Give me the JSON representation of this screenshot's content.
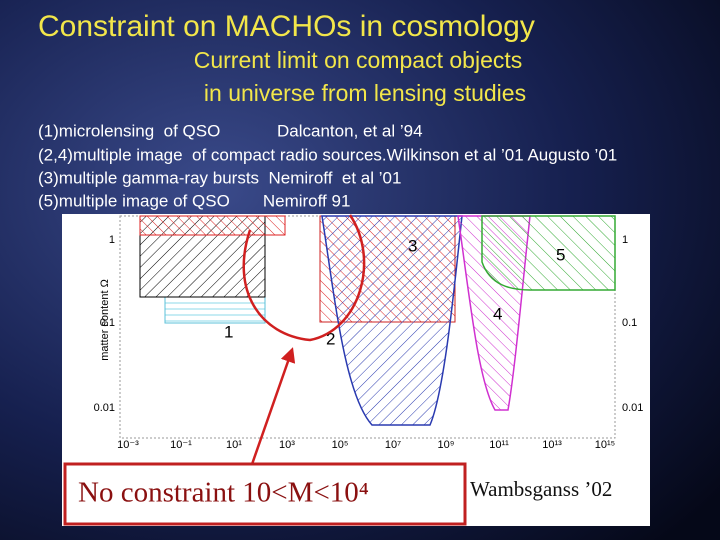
{
  "slide": {
    "title": "Constraint on MACHOs in cosmology",
    "subtitle": [
      "Current limit on compact objects",
      "in universe  from lensing studies"
    ],
    "references": [
      "(1)microlensing  of QSO            Dalcanton, et al ’94",
      "(2,4)multiple image  of compact radio sources.Wilkinson et al ’01 Augusto ’01",
      "(3)multiple gamma-ray bursts  Nemiroff  et al ’01",
      "(5)multiple image of QSO       Nemiroff 91"
    ],
    "figure": {
      "y_axis_label": "matter content Ω",
      "y_tick_labels": [
        "1",
        "0.1",
        "0.01"
      ],
      "x_tick_labels": [
        "10⁻³",
        "10⁻¹",
        "10¹",
        "10³",
        "10⁵",
        "10⁷",
        "10⁹",
        "10¹¹",
        "10¹³",
        "10¹⁵"
      ],
      "region_labels": [
        "1",
        "2",
        "3",
        "4",
        "5"
      ],
      "caption": "No constraint 10<M<10⁴",
      "credit": "Wambsganss ’02"
    }
  }
}
